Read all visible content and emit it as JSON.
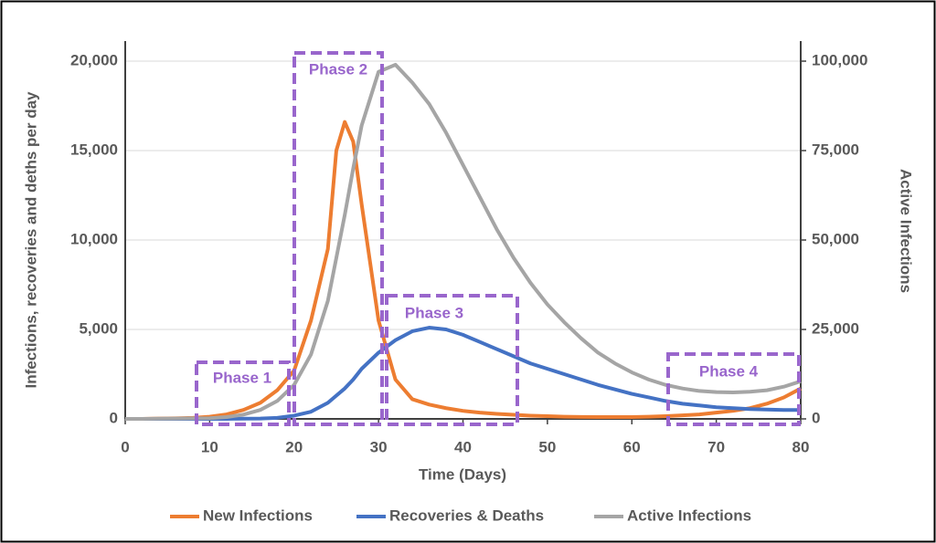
{
  "chart_data": {
    "type": "line",
    "x_label": "Time (Days)",
    "y_label": "Infections, recoveries and deths per day",
    "y2_label": "Active Infections",
    "x": [
      0,
      2,
      4,
      6,
      8,
      10,
      12,
      14,
      16,
      18,
      20,
      22,
      24,
      25,
      26,
      27,
      28,
      30,
      32,
      34,
      36,
      38,
      40,
      42,
      44,
      46,
      48,
      50,
      52,
      54,
      56,
      58,
      60,
      62,
      64,
      66,
      68,
      70,
      72,
      74,
      76,
      78,
      80
    ],
    "series": [
      {
        "name": "New Infections",
        "color": "#ed7d31",
        "values": [
          0,
          0,
          20,
          30,
          60,
          120,
          250,
          500,
          900,
          1600,
          2700,
          5500,
          9500,
          15000,
          16600,
          15500,
          12000,
          5500,
          2200,
          1100,
          800,
          600,
          450,
          350,
          280,
          230,
          180,
          150,
          120,
          110,
          100,
          100,
          100,
          120,
          150,
          200,
          250,
          350,
          450,
          600,
          850,
          1200,
          1700
        ]
      },
      {
        "name": "Recoveries & Deaths",
        "color": "#4472c4",
        "values": [
          0,
          0,
          0,
          0,
          0,
          0,
          0,
          10,
          20,
          60,
          180,
          400,
          900,
          1300,
          1700,
          2200,
          2800,
          3700,
          4400,
          4900,
          5100,
          5000,
          4700,
          4300,
          3900,
          3500,
          3100,
          2800,
          2500,
          2200,
          1900,
          1650,
          1400,
          1200,
          1000,
          850,
          750,
          650,
          600,
          550,
          520,
          500,
          500
        ]
      },
      {
        "name": "Active Infections",
        "color": "#a5a5a5",
        "axis": "y2",
        "values": [
          0,
          0,
          50,
          100,
          150,
          200,
          500,
          1200,
          2500,
          5000,
          9500,
          18000,
          33000,
          45000,
          57000,
          70000,
          82000,
          97000,
          99000,
          94000,
          88000,
          80000,
          71000,
          62000,
          53000,
          45000,
          38000,
          32000,
          27000,
          22500,
          18500,
          15500,
          13000,
          11000,
          9500,
          8500,
          7800,
          7500,
          7400,
          7600,
          8000,
          9000,
          10500
        ]
      }
    ],
    "xlim": [
      0,
      80
    ],
    "xticks": [
      0,
      10,
      20,
      30,
      40,
      50,
      60,
      70,
      80
    ],
    "ylim": [
      0,
      20000
    ],
    "yticks": [
      0,
      {
        "value": 5000,
        "label": "5,000"
      },
      {
        "value": 10000,
        "label": "10,000"
      },
      {
        "value": 15000,
        "label": "15,000"
      },
      {
        "value": 20000,
        "label": "20,000"
      }
    ],
    "y2lim": [
      0,
      100000
    ],
    "y2ticks": [
      0,
      {
        "value": 25000,
        "label": "25,000"
      },
      {
        "value": 50000,
        "label": "50,000"
      },
      {
        "value": 75000,
        "label": "75,000"
      },
      {
        "value": 100000,
        "label": "100,000"
      }
    ],
    "grid": true,
    "legend": "bottom",
    "annotations": [
      "Phase 1",
      "Phase 2",
      "Phase 3",
      "Phase 4"
    ],
    "annotation_color": "#9966cc"
  }
}
